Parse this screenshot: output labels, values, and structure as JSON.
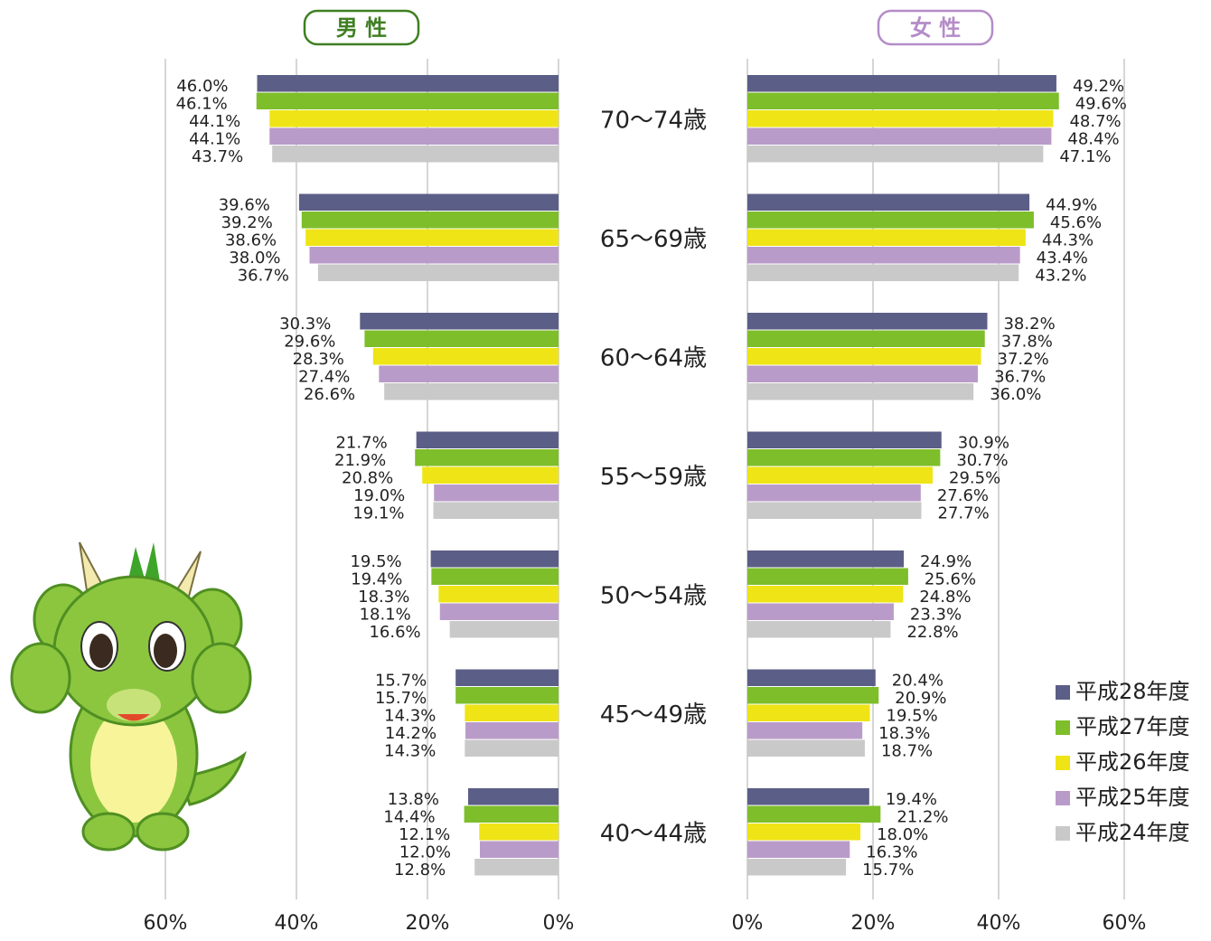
{
  "chart_data": [
    {
      "type": "bar",
      "title": "男 性",
      "orientation": "horizontal",
      "direction": "right-to-left",
      "categories": [
        "70～74歳",
        "65～69歳",
        "60～64歳",
        "55～59歳",
        "50～54歳",
        "45～49歳",
        "40～44歳"
      ],
      "xlim": [
        0,
        60
      ],
      "xticks": [
        {
          "value": 60,
          "label": "60%"
        },
        {
          "value": 40,
          "label": "40%"
        },
        {
          "value": 20,
          "label": "20%"
        },
        {
          "value": 0,
          "label": "0%"
        }
      ],
      "grid": true,
      "series": [
        {
          "color": "#5b5e86",
          "values": [
            46.0,
            39.6,
            30.3,
            21.7,
            19.5,
            15.7,
            13.8
          ],
          "value_labels": [
            "46.0%",
            "39.6%",
            "30.3%",
            "21.7%",
            "19.5%",
            "15.7%",
            "13.8%"
          ]
        },
        {
          "color": "#7dbe2a",
          "values": [
            46.1,
            39.2,
            29.6,
            21.9,
            19.4,
            15.7,
            14.4
          ],
          "value_labels": [
            "46.1%",
            "39.2%",
            "29.6%",
            "21.9%",
            "19.4%",
            "15.7%",
            "14.4%"
          ]
        },
        {
          "color": "#efe416",
          "values": [
            44.1,
            38.6,
            28.3,
            20.8,
            18.3,
            14.3,
            12.1
          ],
          "value_labels": [
            "44.1%",
            "38.6%",
            "28.3%",
            "20.8%",
            "18.3%",
            "14.3%",
            "12.1%"
          ]
        },
        {
          "color": "#b99bc9",
          "values": [
            44.1,
            38.0,
            27.4,
            19.0,
            18.1,
            14.2,
            12.0
          ],
          "value_labels": [
            "44.1%",
            "38.0%",
            "27.4%",
            "19.0%",
            "18.1%",
            "14.2%",
            "12.0%"
          ]
        },
        {
          "color": "#c9c9c9",
          "values": [
            43.7,
            36.7,
            26.6,
            19.1,
            16.6,
            14.3,
            12.8
          ],
          "value_labels": [
            "43.7%",
            "36.7%",
            "26.6%",
            "19.1%",
            "16.6%",
            "14.3%",
            "12.8%"
          ]
        }
      ]
    },
    {
      "type": "bar",
      "title": "女 性",
      "orientation": "horizontal",
      "direction": "left-to-right",
      "xlim": [
        0,
        60
      ],
      "xticks": [
        {
          "value": 0,
          "label": "0%"
        },
        {
          "value": 20,
          "label": "20%"
        },
        {
          "value": 40,
          "label": "40%"
        },
        {
          "value": 60,
          "label": "60%"
        }
      ],
      "grid": true,
      "legend": "lower-right",
      "series": [
        {
          "name": "平成28年度",
          "color": "#5b5e86",
          "values": [
            49.2,
            44.9,
            38.2,
            30.9,
            24.9,
            20.4,
            19.4
          ],
          "value_labels": [
            "49.2%",
            "44.9%",
            "38.2%",
            "30.9%",
            "24.9%",
            "20.4%",
            "19.4%"
          ]
        },
        {
          "name": "平成27年度",
          "color": "#7dbe2a",
          "values": [
            49.6,
            45.6,
            37.8,
            30.7,
            25.6,
            20.9,
            21.2
          ],
          "value_labels": [
            "49.6%",
            "45.6%",
            "37.8%",
            "30.7%",
            "25.6%",
            "20.9%",
            "21.2%"
          ]
        },
        {
          "name": "平成26年度",
          "color": "#efe416",
          "values": [
            48.7,
            44.3,
            37.2,
            29.5,
            24.8,
            19.5,
            18.0
          ],
          "value_labels": [
            "48.7%",
            "44.3%",
            "37.2%",
            "29.5%",
            "24.8%",
            "19.5%",
            "18.0%"
          ]
        },
        {
          "name": "平成25年度",
          "color": "#b99bc9",
          "values": [
            48.4,
            43.4,
            36.7,
            27.6,
            23.3,
            18.3,
            16.3
          ],
          "value_labels": [
            "48.4%",
            "43.4%",
            "36.7%",
            "27.6%",
            "23.3%",
            "18.3%",
            "16.3%"
          ]
        },
        {
          "name": "平成24年度",
          "color": "#c9c9c9",
          "values": [
            47.1,
            43.2,
            36.0,
            27.7,
            22.8,
            18.7,
            15.7
          ],
          "value_labels": [
            "47.1%",
            "43.2%",
            "36.0%",
            "27.7%",
            "22.8%",
            "18.7%",
            "15.7%"
          ]
        }
      ]
    }
  ]
}
